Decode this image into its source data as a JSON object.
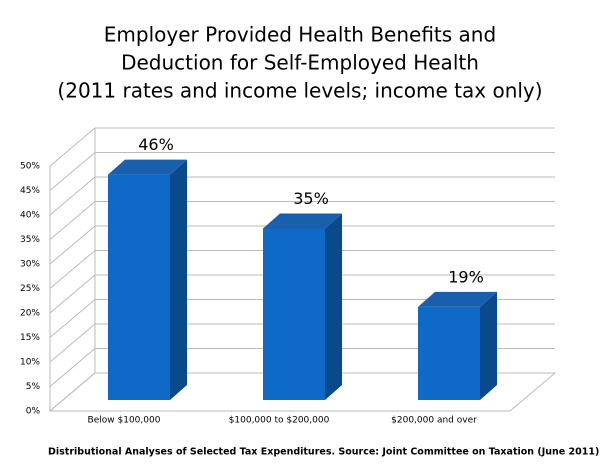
{
  "chart_data": {
    "type": "bar3d",
    "title": [
      "Employer Provided Health Benefits and",
      "Deduction for Self-Employed Health",
      "(2011 rates and income levels; income tax only)"
    ],
    "categories": [
      "Below $100,000",
      "$100,000 to $200,000",
      "$200,000 and over"
    ],
    "values": [
      46,
      35,
      19
    ],
    "value_labels": [
      "46%",
      "35%",
      "19%"
    ],
    "color": "#0e6ac6",
    "ylim": [
      0,
      50
    ],
    "yticks": [
      {
        "value": 0,
        "label": "0%"
      },
      {
        "value": 5,
        "label": "5%"
      },
      {
        "value": 10,
        "label": "10%"
      },
      {
        "value": 15,
        "label": "15%"
      },
      {
        "value": 20,
        "label": "20%"
      },
      {
        "value": 25,
        "label": "25%"
      },
      {
        "value": 30,
        "label": "30%"
      },
      {
        "value": 35,
        "label": "35%"
      },
      {
        "value": 40,
        "label": "40%"
      },
      {
        "value": 45,
        "label": "45%"
      },
      {
        "value": 50,
        "label": "50%"
      }
    ],
    "grid": true,
    "source": "Distributional Analyses of Selected Tax Expenditures. Source: Joint Committee on Taxation (June 2011)"
  }
}
